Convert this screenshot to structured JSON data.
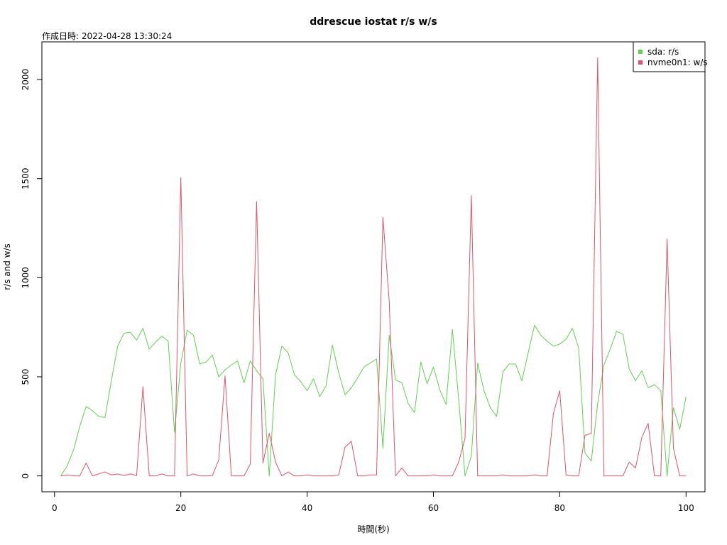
{
  "chart_data": {
    "type": "line",
    "title": "ddrescue iostat r/s w/s",
    "subtitle": "作成日時: 2022-04-28 13:30:24",
    "xlabel": "時間(秒)",
    "ylabel": "r/s and w/s",
    "xlim": [
      -2,
      103
    ],
    "ylim": [
      -80,
      2190
    ],
    "xticks": [
      0,
      20,
      40,
      60,
      80,
      100
    ],
    "yticks": [
      0,
      500,
      1000,
      1500,
      2000
    ],
    "legend_position": "top-right",
    "x": [
      1,
      2,
      3,
      4,
      5,
      6,
      7,
      8,
      9,
      10,
      11,
      12,
      13,
      14,
      15,
      16,
      17,
      18,
      19,
      20,
      21,
      22,
      23,
      24,
      25,
      26,
      27,
      28,
      29,
      30,
      31,
      32,
      33,
      34,
      35,
      36,
      37,
      38,
      39,
      40,
      41,
      42,
      43,
      44,
      45,
      46,
      47,
      48,
      49,
      50,
      51,
      52,
      53,
      54,
      55,
      56,
      57,
      58,
      59,
      60,
      61,
      62,
      63,
      64,
      65,
      66,
      67,
      68,
      69,
      70,
      71,
      72,
      73,
      74,
      75,
      76,
      77,
      78,
      79,
      80,
      81,
      82,
      83,
      84,
      85,
      86,
      87,
      88,
      89,
      90,
      91,
      92,
      93,
      94,
      95,
      96,
      97,
      98,
      99,
      100
    ],
    "series": [
      {
        "name": "sda: r/s",
        "color": "#61D04F",
        "values": [
          0,
          50,
          130,
          250,
          350,
          330,
          300,
          295,
          480,
          655,
          720,
          725,
          685,
          745,
          640,
          675,
          705,
          680,
          220,
          570,
          735,
          710,
          565,
          575,
          610,
          500,
          535,
          560,
          580,
          470,
          580,
          530,
          490,
          0,
          510,
          655,
          620,
          510,
          475,
          430,
          490,
          400,
          455,
          660,
          520,
          410,
          445,
          495,
          550,
          570,
          590,
          140,
          710,
          485,
          470,
          365,
          320,
          575,
          465,
          550,
          435,
          360,
          740,
          385,
          0,
          100,
          570,
          430,
          345,
          300,
          525,
          565,
          565,
          480,
          620,
          760,
          710,
          680,
          655,
          665,
          690,
          745,
          645,
          115,
          75,
          365,
          560,
          640,
          730,
          715,
          540,
          480,
          530,
          445,
          460,
          430,
          0,
          345,
          235,
          400
        ]
      },
      {
        "name": "nvme0n1: w/s",
        "color": "#DF536B",
        "values": [
          0,
          5,
          0,
          0,
          65,
          0,
          10,
          20,
          5,
          10,
          2,
          10,
          2,
          450,
          0,
          0,
          10,
          0,
          0,
          1505,
          0,
          10,
          0,
          0,
          2,
          80,
          505,
          0,
          0,
          0,
          60,
          1385,
          65,
          215,
          70,
          0,
          20,
          0,
          0,
          5,
          0,
          0,
          0,
          0,
          5,
          145,
          175,
          0,
          0,
          5,
          5,
          1305,
          880,
          0,
          40,
          0,
          0,
          0,
          0,
          5,
          0,
          0,
          0,
          70,
          190,
          1415,
          0,
          0,
          0,
          0,
          5,
          0,
          0,
          0,
          0,
          5,
          0,
          0,
          315,
          430,
          5,
          0,
          0,
          205,
          215,
          2110,
          0,
          0,
          0,
          0,
          70,
          40,
          195,
          265,
          0,
          0,
          1195,
          140,
          0,
          0
        ]
      }
    ]
  }
}
